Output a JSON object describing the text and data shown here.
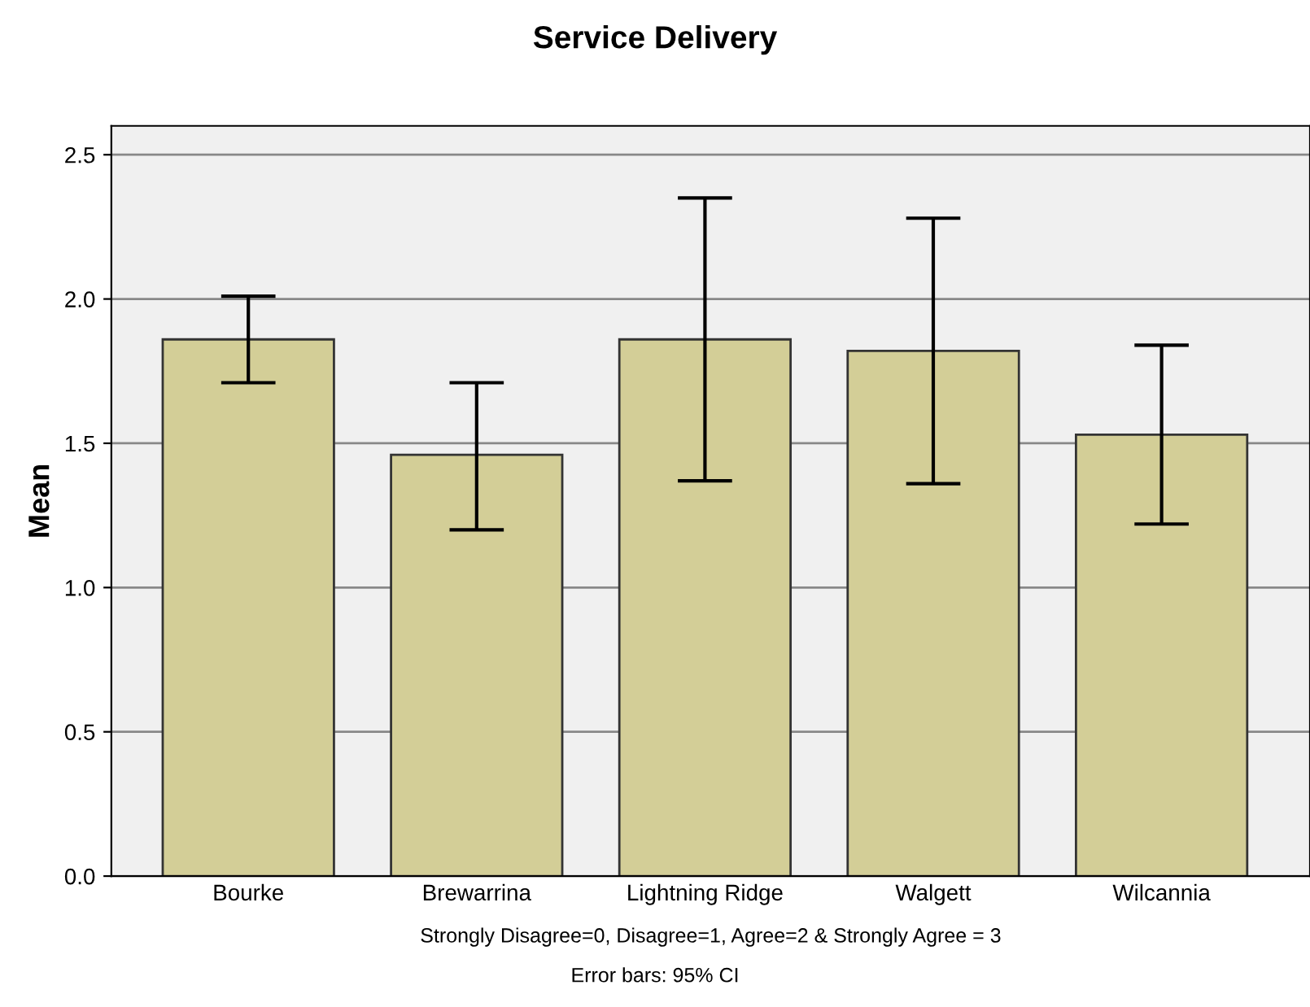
{
  "chart_data": {
    "type": "bar",
    "title": "Service Delivery",
    "xlabel": "Strongly Disagree=0, Disagree=1, Agree=2 & Strongly Agree = 3",
    "ylabel": "Mean",
    "categories": [
      "Bourke",
      "Brewarrina",
      "Lightning Ridge",
      "Walgett",
      "Wilcannia"
    ],
    "values": [
      1.86,
      1.46,
      1.86,
      1.82,
      1.53
    ],
    "errors": [
      [
        1.71,
        2.01
      ],
      [
        1.2,
        1.71
      ],
      [
        1.37,
        2.35
      ],
      [
        1.36,
        2.28
      ],
      [
        1.22,
        1.84
      ]
    ],
    "color": "#d3ce97",
    "ylim": [
      0,
      2.6
    ],
    "yticks": [
      {
        "value": 0,
        "label": "0.0"
      },
      {
        "value": 0.5,
        "label": "0.5"
      },
      {
        "value": 1,
        "label": "1.0"
      },
      {
        "value": 1.5,
        "label": "1.5"
      },
      {
        "value": 2,
        "label": "2.0"
      },
      {
        "value": 2.5,
        "label": "2.5"
      }
    ],
    "grid": "y",
    "annotations": [
      "Error bars: 95% CI"
    ]
  }
}
